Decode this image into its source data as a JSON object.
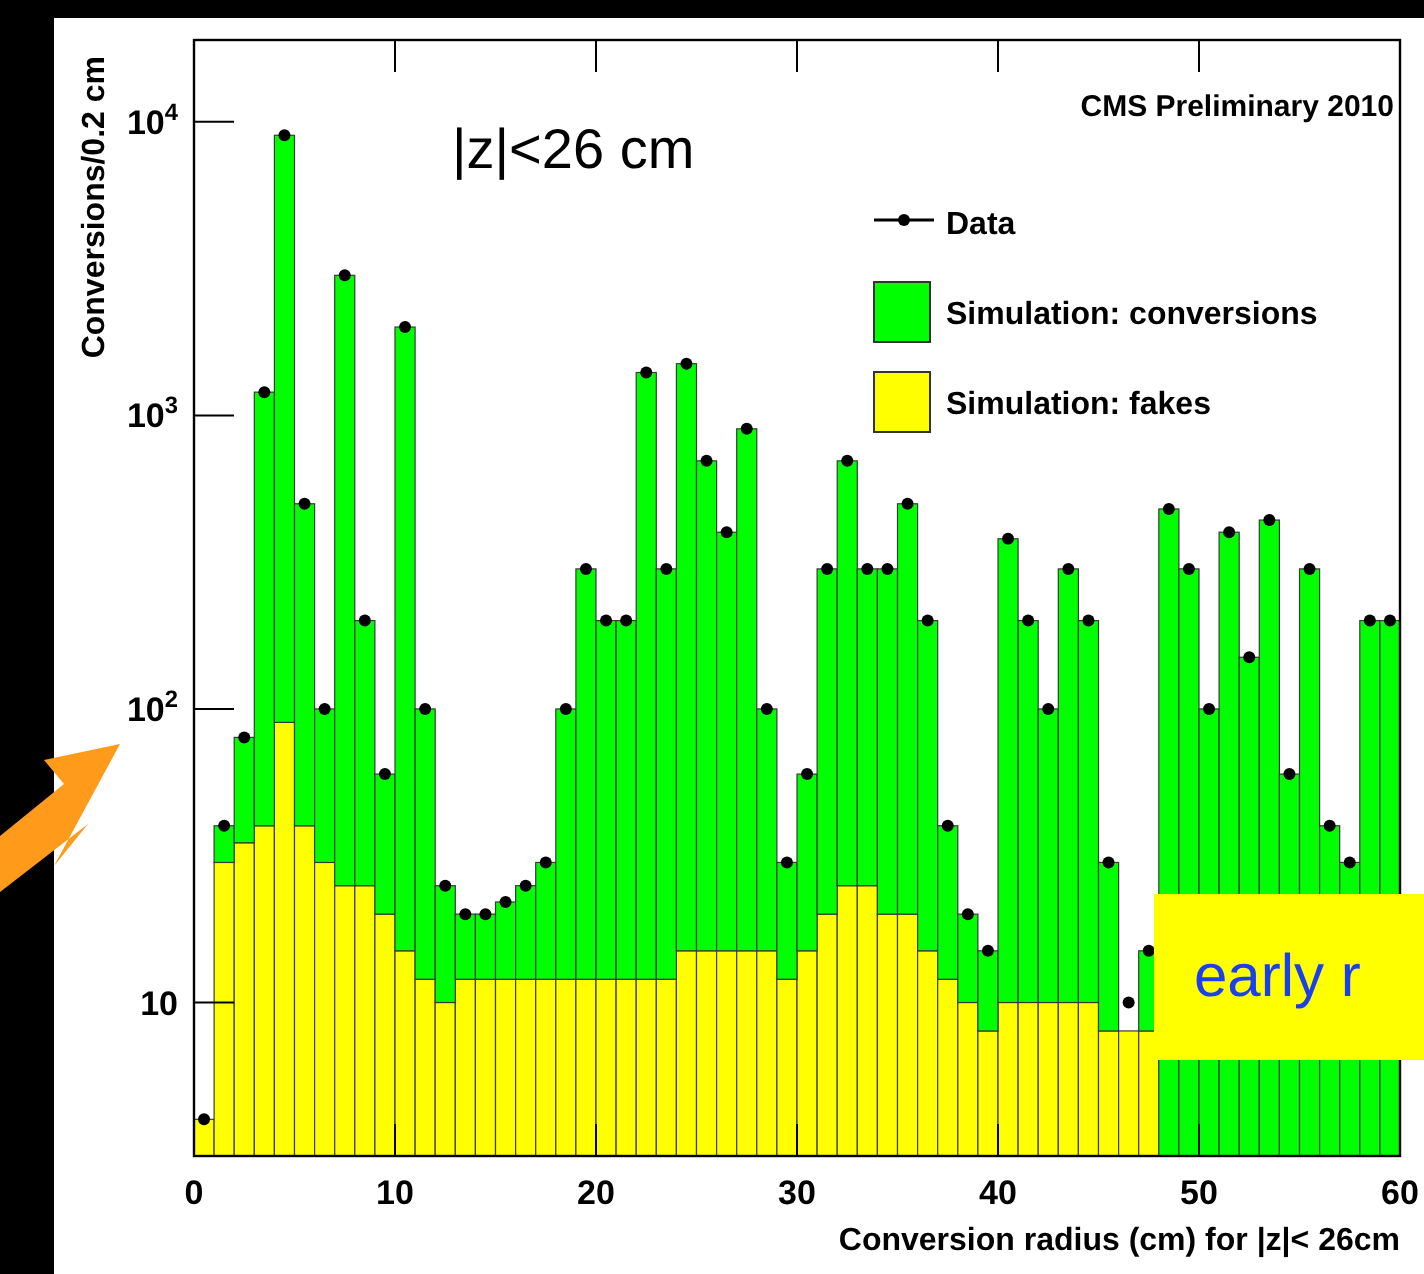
{
  "chart_data": {
    "type": "bar",
    "xlabel": "Conversion radius (cm) for |z|< 26cm",
    "ylabel": "Conversions/0.2 cm",
    "x": [
      0.5,
      1.5,
      2.5,
      3.5,
      4.5,
      5.5,
      6.5,
      7.5,
      8.5,
      9.5,
      10.5,
      11.5,
      12.5,
      13.5,
      14.5,
      15.5,
      16.5,
      17.5,
      18.5,
      19.5,
      20.5,
      21.5,
      22.5,
      23.5,
      24.5,
      25.5,
      26.5,
      27.5,
      28.5,
      29.5,
      30.5,
      31.5,
      32.5,
      33.5,
      34.5,
      35.5,
      36.5,
      37.5,
      38.5,
      39.5,
      40.5,
      41.5,
      42.5,
      43.5,
      44.5,
      45.5,
      46.5,
      47.5,
      48.5,
      49.5,
      50.5,
      51.5,
      52.5,
      53.5,
      54.5,
      55.5,
      56.5,
      57.5,
      58.5,
      59.5
    ],
    "stacked": true,
    "log": "y",
    "legend": "top right",
    "marker": "circle",
    "xlim": [
      0,
      60
    ],
    "xticks": [
      0,
      10,
      20,
      30,
      40,
      50,
      60
    ],
    "ylim": [
      3,
      19000
    ],
    "yticks": [
      {
        "value": 10,
        "label": "10"
      },
      {
        "value": 100,
        "label": "10$^{2}$"
      },
      {
        "value": 1000,
        "label": "10$^{3}$"
      },
      {
        "value": 10000,
        "label": "10$^{4}$"
      }
    ],
    "series": [
      {
        "name": "Simulation: fakes",
        "color": "#ffff00",
        "values": [
          4,
          30,
          35,
          40,
          90,
          40,
          30,
          25,
          25,
          20,
          15,
          12,
          10,
          12,
          12,
          12,
          12,
          12,
          12,
          12,
          12,
          12,
          12,
          12,
          15,
          15,
          15,
          15,
          15,
          12,
          15,
          20,
          25,
          25,
          20,
          20,
          15,
          12,
          10,
          8,
          10,
          10,
          10,
          10,
          10,
          8,
          8,
          8,
          null,
          null,
          null,
          null,
          null,
          null,
          null,
          null,
          null,
          null,
          null,
          null
        ]
      },
      {
        "name": "Simulation: conversions",
        "color": "#00ff00",
        "values": [
          null,
          10,
          45,
          1160,
          8910,
          460,
          70,
          2975,
          175,
          40,
          1985,
          88,
          15,
          8,
          8,
          10,
          13,
          18,
          88,
          288,
          188,
          188,
          1388,
          288,
          1485,
          685,
          385,
          885,
          85,
          18,
          45,
          280,
          675,
          275,
          280,
          480,
          185,
          28,
          10,
          7,
          370,
          190,
          90,
          290,
          190,
          22,
          null,
          7,
          480,
          300,
          100,
          400,
          150,
          440,
          60,
          300,
          40,
          30,
          200,
          200
        ]
      },
      {
        "name": "Data",
        "type": "scatter",
        "color": "#000000",
        "values": [
          4,
          40,
          80,
          1200,
          9000,
          500,
          100,
          3000,
          200,
          60,
          2000,
          100,
          25,
          20,
          20,
          22,
          25,
          30,
          100,
          300,
          200,
          200,
          1400,
          300,
          1500,
          700,
          400,
          900,
          100,
          30,
          60,
          300,
          700,
          300,
          300,
          500,
          200,
          40,
          20,
          15,
          380,
          200,
          100,
          300,
          200,
          30,
          10,
          15,
          480,
          300,
          100,
          400,
          150,
          440,
          60,
          300,
          40,
          30,
          200,
          200
        ]
      }
    ],
    "annotations": [
      "|z|<26 cm",
      "CMS Preliminary 2010",
      "early r"
    ]
  }
}
